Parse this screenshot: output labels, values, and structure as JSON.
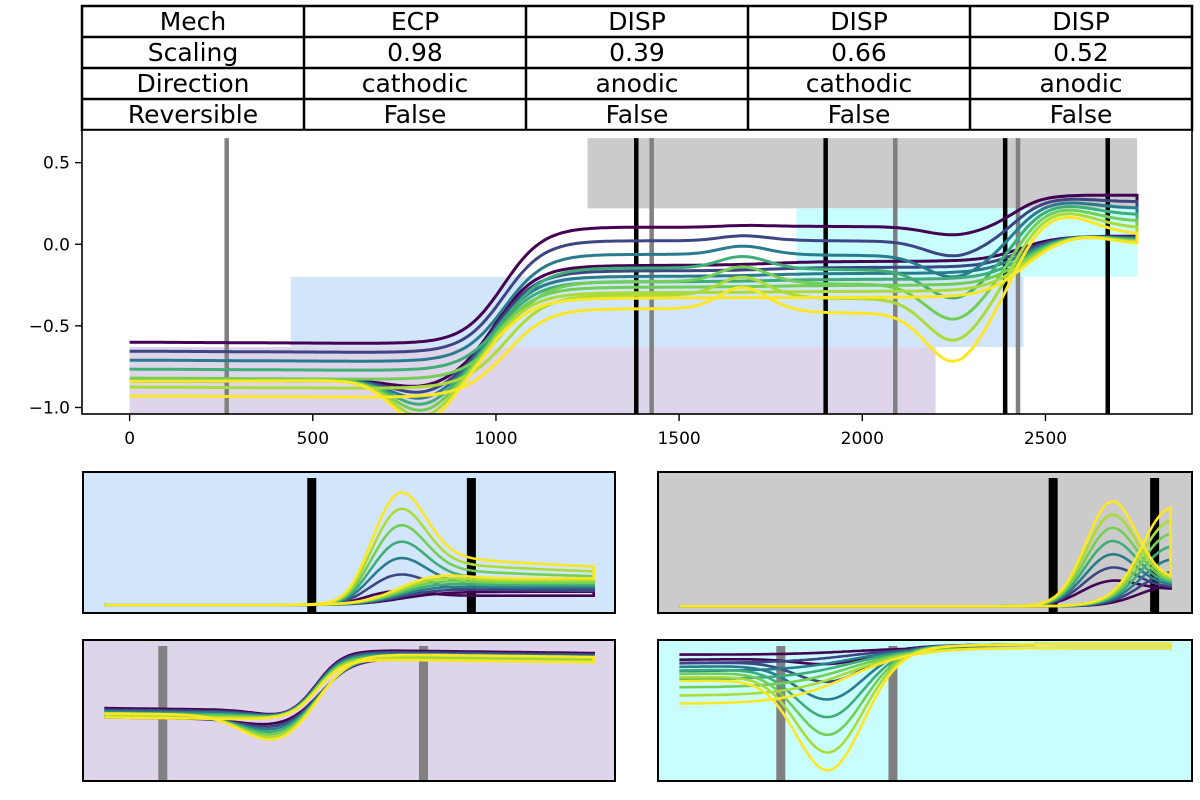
{
  "table": {
    "rows": [
      [
        "Mech",
        "ECP",
        "DISP",
        "DISP",
        "DISP"
      ],
      [
        "Scaling",
        "0.98",
        "0.39",
        "0.66",
        "0.52"
      ],
      [
        "Direction",
        "cathodic",
        "anodic",
        "cathodic",
        "anodic"
      ],
      [
        "Reversible",
        "False",
        "False",
        "False",
        "False"
      ]
    ]
  },
  "colors": {
    "series": [
      "#440154",
      "#3b528b",
      "#21918c",
      "#5ec962",
      "#9bd93c",
      "#fde725"
    ],
    "region_purple": "#dfd5ea",
    "region_blue": "#d2e6fb",
    "region_gray": "#cbcbcb",
    "region_cyan": "#c9feff",
    "marker_black": "#000000",
    "marker_gray": "#808080"
  },
  "chart_data": [
    {
      "type": "line",
      "title": "",
      "xlabel": "",
      "ylabel": "",
      "xlim": [
        -130,
        2900
      ],
      "ylim": [
        -1.04,
        0.7
      ],
      "x_ticks": [
        0,
        500,
        1000,
        1500,
        2000,
        2500
      ],
      "y_ticks": [
        0.5,
        0.0,
        -0.5,
        -1.0
      ],
      "x_tick_labels": [
        "0",
        "500",
        "1000",
        "1500",
        "2000",
        "2500"
      ],
      "y_tick_labels": [
        "0.5",
        "0.0",
        "−0.5",
        "−1.0"
      ],
      "grid": false,
      "series_count": 7,
      "shaded_regions": [
        {
          "x": [
            0,
            2200
          ],
          "y": [
            -1.04,
            -0.63
          ],
          "color": "purple"
        },
        {
          "x": [
            440,
            2440
          ],
          "y": [
            -0.63,
            -0.2
          ],
          "color": "blue"
        },
        {
          "x": [
            1250,
            2750
          ],
          "y": [
            0.22,
            0.65
          ],
          "color": "gray"
        },
        {
          "x": [
            1820,
            2750
          ],
          "y": [
            -0.2,
            0.22
          ],
          "color": "cyan"
        }
      ],
      "vertical_lines": [
        {
          "x": 265,
          "color": "gray"
        },
        {
          "x": 1383,
          "color": "black"
        },
        {
          "x": 1425,
          "color": "gray"
        },
        {
          "x": 1900,
          "color": "black"
        },
        {
          "x": 2090,
          "color": "gray"
        },
        {
          "x": 2390,
          "color": "black"
        },
        {
          "x": 2425,
          "color": "gray"
        },
        {
          "x": 2670,
          "color": "black"
        }
      ]
    },
    {
      "type": "line",
      "panel": "inset-blue",
      "vertical_lines": [
        {
          "x": 0.43,
          "color": "black"
        },
        {
          "x": 0.73,
          "color": "black"
        }
      ]
    },
    {
      "type": "line",
      "panel": "inset-gray",
      "vertical_lines": [
        {
          "x": 0.74,
          "color": "black"
        },
        {
          "x": 0.93,
          "color": "black"
        }
      ]
    },
    {
      "type": "line",
      "panel": "inset-purple",
      "vertical_lines": [
        {
          "x": 0.15,
          "color": "gray"
        },
        {
          "x": 0.64,
          "color": "gray"
        }
      ]
    },
    {
      "type": "line",
      "panel": "inset-cyan",
      "vertical_lines": [
        {
          "x": 0.23,
          "color": "gray"
        },
        {
          "x": 0.44,
          "color": "gray"
        }
      ]
    }
  ]
}
